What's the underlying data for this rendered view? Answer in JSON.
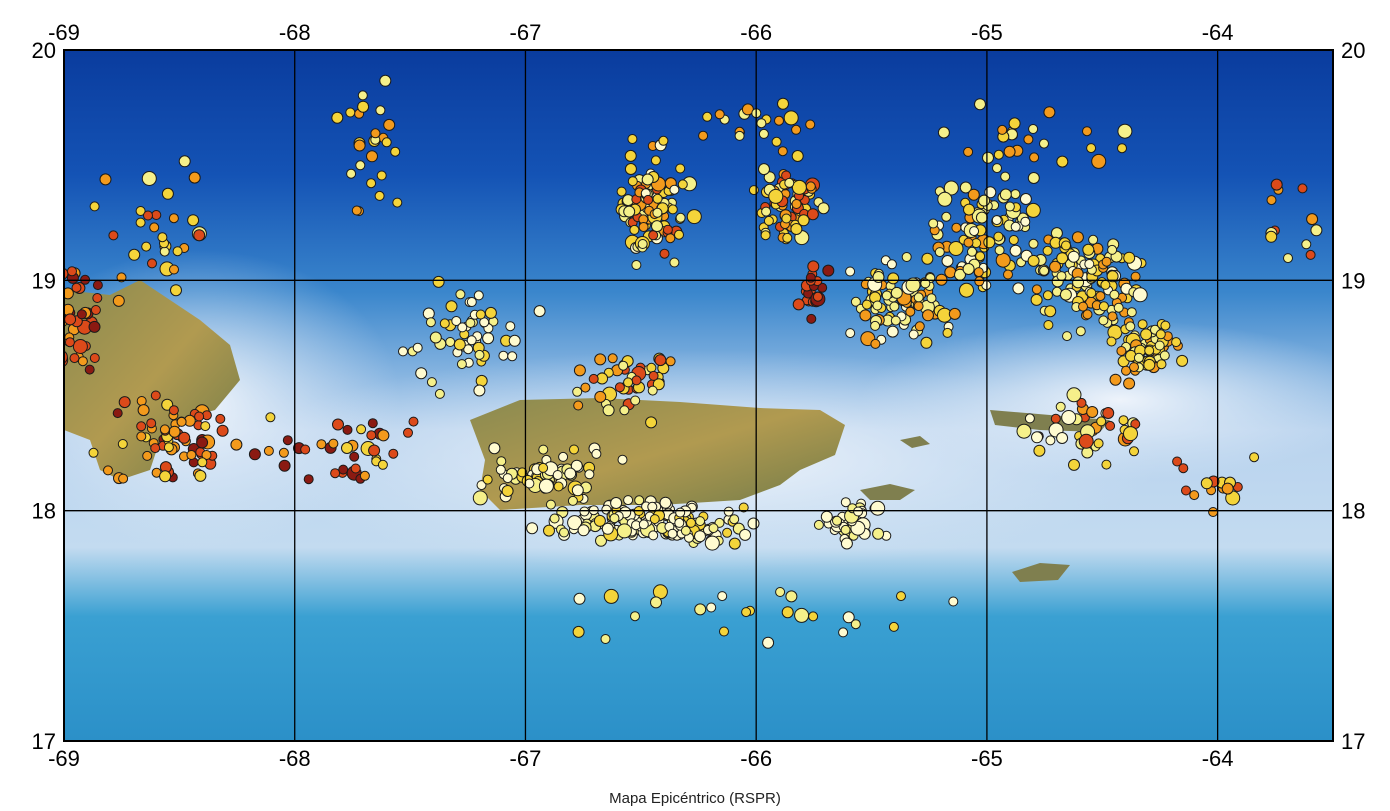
{
  "caption": "Mapa Epicéntrico (RSPR)",
  "map": {
    "lon_range": [
      -69,
      -63.5
    ],
    "lat_range": [
      17,
      20
    ],
    "lon_ticks": [
      -69,
      -68,
      -67,
      -66,
      -65,
      -64
    ],
    "lat_ticks": [
      17,
      18,
      19,
      20
    ],
    "lon_tick_labels": [
      "-69",
      "-68",
      "-67",
      "-66",
      "-65",
      "-64"
    ],
    "lat_tick_labels": [
      "17",
      "18",
      "19",
      "20"
    ],
    "grid": true,
    "ocean_colors": {
      "deep": "#0a3c9e",
      "mid": "#3a86cc",
      "shallow": "#d9e6f5"
    },
    "land_color": "#8c8a52",
    "epicenter_colors": [
      "#fffbd0",
      "#f5f08a",
      "#f4d43a",
      "#f39a1c",
      "#dc4a1a",
      "#8b1a12"
    ],
    "epicenter_clusters": [
      {
        "lon": -68.95,
        "lat": 18.85,
        "spread_lon": 0.15,
        "spread_lat": 0.35,
        "count": 40,
        "palette": [
          3,
          4,
          4,
          5
        ]
      },
      {
        "lon": -68.5,
        "lat": 18.3,
        "spread_lon": 0.45,
        "spread_lat": 0.25,
        "count": 70,
        "palette": [
          2,
          3,
          3,
          4,
          4,
          5
        ]
      },
      {
        "lon": -68.6,
        "lat": 19.2,
        "spread_lon": 0.35,
        "spread_lat": 0.45,
        "count": 30,
        "palette": [
          1,
          2,
          3,
          4
        ]
      },
      {
        "lon": -67.75,
        "lat": 18.25,
        "spread_lon": 0.4,
        "spread_lat": 0.2,
        "count": 35,
        "palette": [
          2,
          3,
          4,
          5
        ]
      },
      {
        "lon": -67.7,
        "lat": 19.5,
        "spread_lon": 0.2,
        "spread_lat": 0.4,
        "count": 25,
        "palette": [
          1,
          2,
          3
        ]
      },
      {
        "lon": -67.25,
        "lat": 18.75,
        "spread_lon": 0.4,
        "spread_lat": 0.3,
        "count": 55,
        "palette": [
          0,
          0,
          1,
          2
        ]
      },
      {
        "lon": -66.45,
        "lat": 19.35,
        "spread_lon": 0.2,
        "spread_lat": 0.35,
        "count": 110,
        "palette": [
          0,
          1,
          1,
          2,
          2,
          3,
          4
        ]
      },
      {
        "lon": -66.6,
        "lat": 18.55,
        "spread_lon": 0.35,
        "spread_lat": 0.2,
        "count": 45,
        "palette": [
          1,
          2,
          3,
          4
        ]
      },
      {
        "lon": -66.45,
        "lat": 17.95,
        "spread_lon": 0.6,
        "spread_lat": 0.12,
        "count": 160,
        "palette": [
          0,
          0,
          0,
          1,
          2
        ]
      },
      {
        "lon": -66.9,
        "lat": 18.15,
        "spread_lon": 0.4,
        "spread_lat": 0.15,
        "count": 60,
        "palette": [
          0,
          0,
          1,
          2
        ]
      },
      {
        "lon": -65.6,
        "lat": 17.95,
        "spread_lon": 0.2,
        "spread_lat": 0.12,
        "count": 35,
        "palette": [
          0,
          0,
          1
        ]
      },
      {
        "lon": -65.85,
        "lat": 19.35,
        "spread_lon": 0.2,
        "spread_lat": 0.25,
        "count": 70,
        "palette": [
          1,
          2,
          2,
          3,
          4
        ]
      },
      {
        "lon": -65.75,
        "lat": 18.95,
        "spread_lon": 0.15,
        "spread_lat": 0.15,
        "count": 20,
        "palette": [
          4,
          4,
          5
        ]
      },
      {
        "lon": -65.4,
        "lat": 18.9,
        "spread_lon": 0.35,
        "spread_lat": 0.25,
        "count": 90,
        "palette": [
          0,
          1,
          1,
          2,
          3
        ]
      },
      {
        "lon": -65.0,
        "lat": 19.2,
        "spread_lon": 0.35,
        "spread_lat": 0.35,
        "count": 100,
        "palette": [
          0,
          1,
          1,
          2,
          2,
          3
        ]
      },
      {
        "lon": -64.55,
        "lat": 19.0,
        "spread_lon": 0.35,
        "spread_lat": 0.3,
        "count": 120,
        "palette": [
          0,
          1,
          1,
          2,
          2,
          3
        ]
      },
      {
        "lon": -64.3,
        "lat": 18.7,
        "spread_lon": 0.25,
        "spread_lat": 0.2,
        "count": 60,
        "palette": [
          1,
          2,
          2,
          3
        ]
      },
      {
        "lon": -64.55,
        "lat": 18.35,
        "spread_lon": 0.35,
        "spread_lat": 0.2,
        "count": 40,
        "palette": [
          0,
          1,
          2,
          3,
          4
        ]
      },
      {
        "lon": -64.8,
        "lat": 19.6,
        "spread_lon": 0.5,
        "spread_lat": 0.2,
        "count": 25,
        "palette": [
          1,
          2,
          3
        ]
      },
      {
        "lon": -66.0,
        "lat": 19.7,
        "spread_lon": 0.5,
        "spread_lat": 0.15,
        "count": 20,
        "palette": [
          1,
          2,
          3
        ]
      },
      {
        "lon": -66.0,
        "lat": 17.55,
        "spread_lon": 1.3,
        "spread_lat": 0.2,
        "count": 25,
        "palette": [
          0,
          1,
          2
        ]
      },
      {
        "lon": -64.0,
        "lat": 18.1,
        "spread_lon": 0.3,
        "spread_lat": 0.2,
        "count": 15,
        "palette": [
          2,
          3,
          4
        ]
      },
      {
        "lon": -63.7,
        "lat": 19.3,
        "spread_lon": 0.2,
        "spread_lat": 0.35,
        "count": 12,
        "palette": [
          1,
          2,
          3,
          4
        ]
      }
    ]
  }
}
